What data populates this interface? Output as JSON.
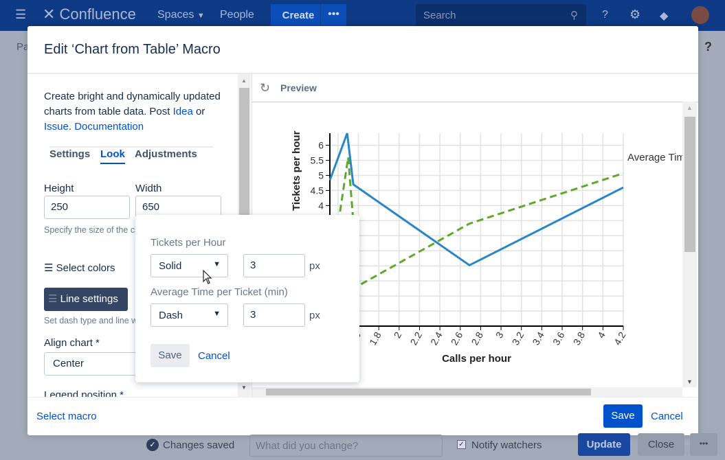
{
  "topbar": {
    "logo": "Confluence",
    "spaces": "Spaces",
    "people": "People",
    "create": "Create",
    "more": "•••",
    "search_placeholder": "Search"
  },
  "background": {
    "breadcrumb_stub": "Pa",
    "help": "?"
  },
  "modal": {
    "title": "Edit ‘Chart from Table’ Macro",
    "intro": "Create bright and dynamically updated charts from table data. Post",
    "idea": "Idea",
    "or": " or ",
    "issue": "Issue",
    "dot": ". ",
    "documentation": "Documentation",
    "tabs": [
      {
        "label": "Settings"
      },
      {
        "label": "Look"
      },
      {
        "label": "Adjustments"
      }
    ],
    "height_label": "Height",
    "height_value": "250",
    "width_label": "Width",
    "width_value": "650",
    "size_help": "Specify the size of the chart in px. If the fields are empty, the chart will fit",
    "select_colors": "Select colors",
    "line_settings": "Line settings",
    "line_help": "Set dash type and line width",
    "align_label": "Align chart *",
    "align_value": "Center",
    "legend_label": "Legend position *",
    "preview": "Preview",
    "select_macro": "Select macro",
    "save": "Save",
    "cancel": "Cancel"
  },
  "popup": {
    "series": [
      {
        "label": "Tickets per Hour",
        "dash": "Solid",
        "width": "3"
      },
      {
        "label": "Average Time per Ticket (min)",
        "dash": "Dash",
        "width": "3"
      }
    ],
    "unit": "px",
    "save": "Save",
    "cancel": "Cancel"
  },
  "footer": {
    "changes_saved": "Changes saved",
    "comment_placeholder": "What did you change?",
    "notify": "Notify watchers",
    "update": "Update",
    "close": "Close",
    "more": "•••"
  },
  "chart_data": {
    "type": "line",
    "xlabel": "Calls per hour",
    "ylabel": "Tickets per hour",
    "xlim": [
      1.32,
      4.2
    ],
    "ylim": [
      0,
      6.4
    ],
    "xticks": [
      "1.4",
      "1.6",
      "1.8",
      "2",
      "2.2",
      "2.4",
      "2.6",
      "2.8",
      "3",
      "3.2",
      "3.4",
      "3.6",
      "3.8",
      "4",
      "4.2"
    ],
    "yticks": [
      "0.5",
      "1",
      "1.5",
      "2",
      "2.5",
      "3",
      "3.5",
      "4",
      "4.5",
      "5",
      "5.5",
      "6"
    ],
    "legend": "right",
    "series": [
      {
        "name": "Tickets per Hour",
        "color": "#2a86c5",
        "dash": "solid",
        "x": [
          1.32,
          1.49,
          1.55,
          2.69,
          4.2
        ],
        "y": [
          4.84,
          6.4,
          4.7,
          2.02,
          4.6
        ]
      },
      {
        "name": "Average Time per Ticket (min)",
        "color": "#5ea92c",
        "dash": "dash",
        "x": [
          1.42,
          1.5,
          1.6,
          2.69,
          4.2
        ],
        "y": [
          3.8,
          5.6,
          1.34,
          3.4,
          5.07
        ]
      }
    ]
  }
}
